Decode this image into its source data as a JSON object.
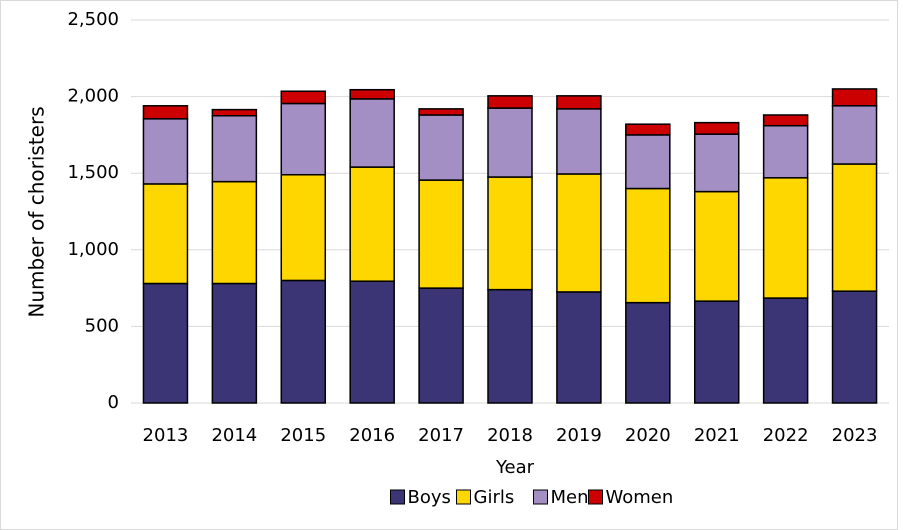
{
  "chart_data": {
    "type": "stacked_bar",
    "x_label": "Year",
    "y_label": "Number of choristers",
    "categories": [
      "2013",
      "2014",
      "2015",
      "2016",
      "2017",
      "2018",
      "2019",
      "2020",
      "2021",
      "2022",
      "2023"
    ],
    "series": [
      {
        "name": "Boys",
        "color": "#3b3576",
        "values": [
          780,
          780,
          800,
          795,
          750,
          740,
          725,
          655,
          665,
          685,
          730
        ]
      },
      {
        "name": "Girls",
        "color": "#ffd700",
        "values": [
          650,
          665,
          690,
          745,
          705,
          735,
          770,
          745,
          715,
          785,
          830
        ]
      },
      {
        "name": "Men",
        "color": "#a48fc4",
        "values": [
          425,
          430,
          465,
          445,
          425,
          450,
          425,
          350,
          375,
          340,
          380
        ]
      },
      {
        "name": "Women",
        "color": "#cc0000",
        "values": [
          85,
          40,
          80,
          60,
          40,
          80,
          85,
          70,
          75,
          70,
          110
        ]
      }
    ],
    "ylim": [
      0,
      2500
    ],
    "yticks": [
      0,
      500,
      {
        "value": 1000,
        "label": "1,000"
      },
      {
        "value": 1500,
        "label": "1,500"
      },
      {
        "value": 2000,
        "label": "2,000"
      },
      {
        "value": 2500,
        "label": "2,500"
      }
    ],
    "grid": true,
    "legend": "bottom"
  }
}
